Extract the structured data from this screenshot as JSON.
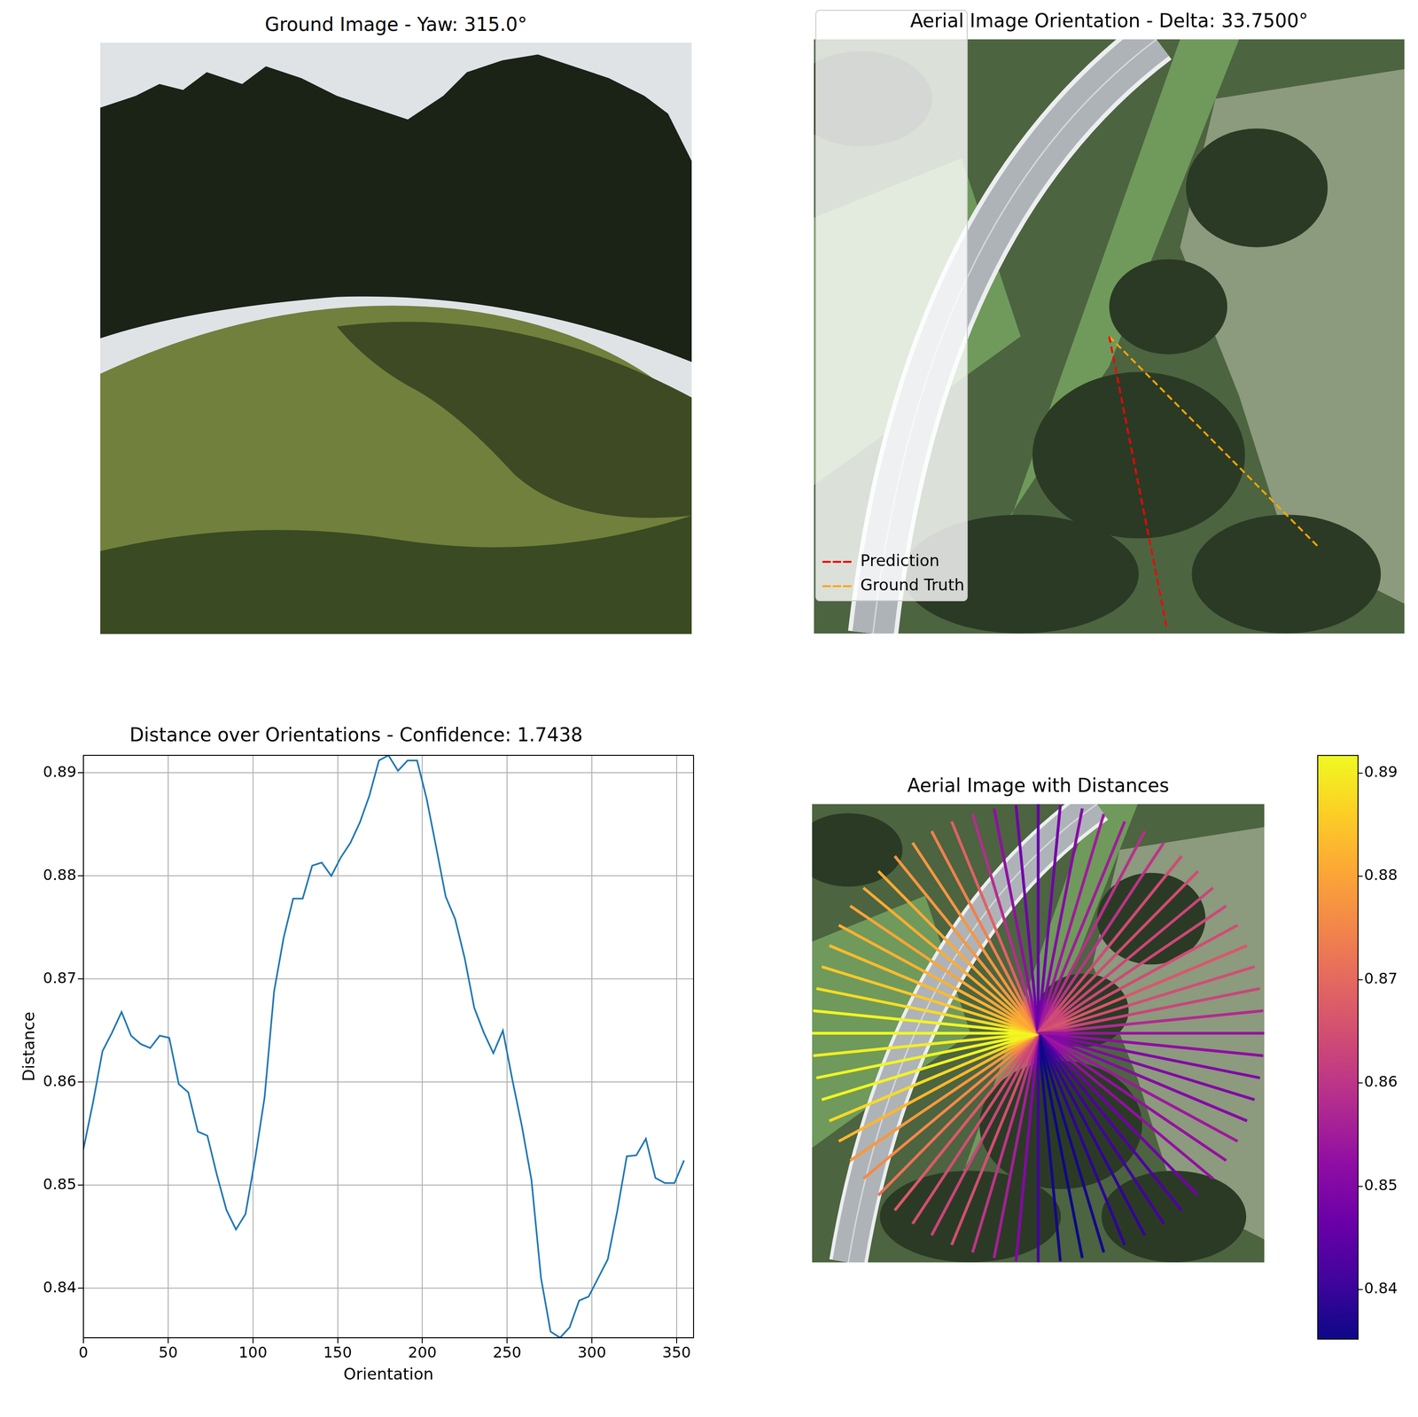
{
  "chart_data": [
    {
      "type": "image",
      "title": "Ground Image - Yaw: 315.0°"
    },
    {
      "type": "image",
      "title": "Aerial Image Orientation - Delta: 33.7500°",
      "legend": "upper right",
      "series": [
        {
          "name": "Prediction",
          "color": "red",
          "line_style": "dashed",
          "values": [
            281.25
          ]
        },
        {
          "name": "Ground Truth",
          "color": "orange",
          "line_style": "dashed",
          "values": [
            315
          ]
        }
      ]
    },
    {
      "type": "line",
      "title": "Distance over Orientations - Confidence: 1.7438",
      "x_label": "Orientation",
      "y_label": "Distance",
      "x": [
        0,
        5.625,
        11.25,
        16.875,
        22.5,
        28.125,
        33.75,
        39.375,
        45,
        50.625,
        56.25,
        61.875,
        67.5,
        73.125,
        78.75,
        84.375,
        90,
        95.625,
        101.25,
        106.875,
        112.5,
        118.125,
        123.75,
        129.375,
        135,
        140.625,
        146.25,
        151.875,
        157.5,
        163.125,
        168.75,
        174.375,
        180,
        185.625,
        191.25,
        196.875,
        202.5,
        208.125,
        213.75,
        219.375,
        225,
        230.625,
        236.25,
        241.875,
        247.5,
        253.125,
        258.75,
        264.375,
        270,
        275.625,
        281.25,
        286.875,
        292.5,
        298.125,
        303.75,
        309.375,
        315,
        320.625,
        326.25,
        331.875,
        337.5,
        343.125,
        348.75,
        354.375
      ],
      "values": [
        0.8535,
        0.858,
        0.863,
        0.8648,
        0.8668,
        0.8645,
        0.8637,
        0.8633,
        0.8645,
        0.8643,
        0.8598,
        0.859,
        0.8552,
        0.8548,
        0.851,
        0.8476,
        0.8457,
        0.8472,
        0.8525,
        0.8585,
        0.8688,
        0.874,
        0.8778,
        0.8778,
        0.881,
        0.8813,
        0.88,
        0.8818,
        0.8832,
        0.8852,
        0.8878,
        0.8912,
        0.8917,
        0.8902,
        0.8912,
        0.8912,
        0.8875,
        0.8828,
        0.878,
        0.8758,
        0.872,
        0.8672,
        0.8648,
        0.8628,
        0.865,
        0.8602,
        0.8557,
        0.8505,
        0.841,
        0.8358,
        0.8352,
        0.8362,
        0.8388,
        0.8392,
        0.841,
        0.8428,
        0.8475,
        0.8528,
        0.8529,
        0.8545,
        0.8507,
        0.8502,
        0.8502,
        0.8524
      ],
      "color": "#1f77b4",
      "xlim": [
        0,
        360
      ],
      "xticks": [
        0,
        50,
        100,
        150,
        200,
        250,
        300,
        350
      ],
      "ylim": [
        0.8352,
        0.8917
      ],
      "yticks": [
        0.84,
        0.85,
        0.86,
        0.87,
        0.88,
        0.89
      ],
      "grid": true
    },
    {
      "type": "radial",
      "title": "Aerial Image with Distances",
      "colorbar": {
        "range": [
          0.8352,
          0.8917
        ],
        "ticks": [
          0.84,
          0.85,
          0.86,
          0.87,
          0.88,
          0.89
        ]
      }
    }
  ]
}
